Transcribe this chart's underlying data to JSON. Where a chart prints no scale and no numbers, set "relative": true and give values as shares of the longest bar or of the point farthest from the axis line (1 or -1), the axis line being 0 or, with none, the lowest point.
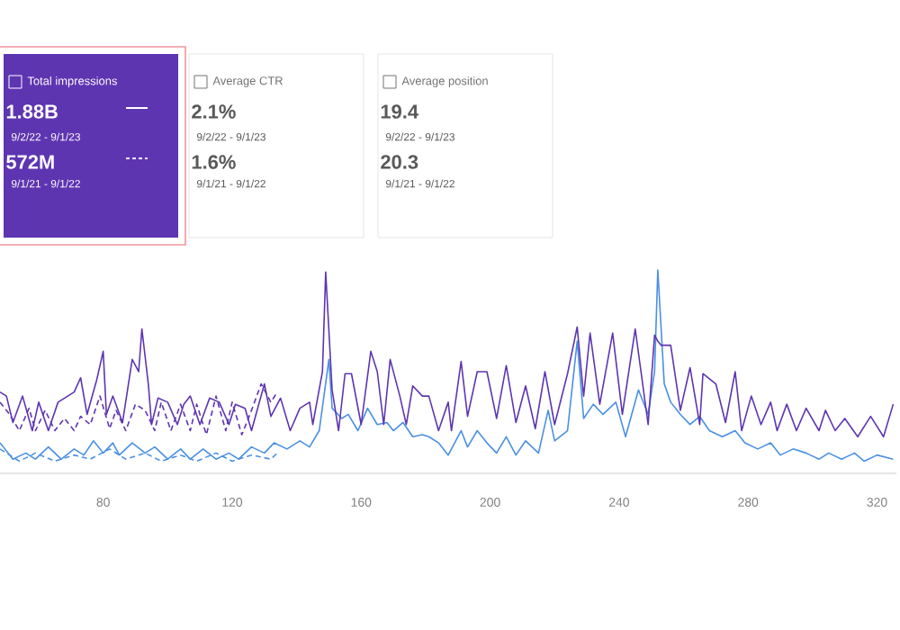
{
  "chart_data": [
    {
      "type": "other",
      "title": "Total impressions",
      "color": "#5e35b1",
      "annotations": [
        "1.88B",
        "9/2/22 - 9/1/23",
        "572M",
        "9/1/21 - 9/1/22"
      ]
    },
    {
      "type": "other",
      "title": "Average CTR",
      "annotations": [
        "2.1%",
        "9/2/22 - 9/1/23",
        "1.6%",
        "9/1/21 - 9/1/22"
      ]
    },
    {
      "type": "other",
      "title": "Average position",
      "annotations": [
        "19.4",
        "9/2/22 - 9/1/23",
        "20.3",
        "9/1/21 - 9/1/22"
      ]
    },
    {
      "type": "line",
      "relative": true,
      "xlim": [
        48,
        326
      ],
      "xticks": [
        80,
        120,
        160,
        200,
        240,
        280,
        320
      ],
      "series": [
        {
          "color": "#5e35b1",
          "line_style": "dashed",
          "x": [
            48,
            51,
            54,
            57,
            59,
            62,
            65,
            68,
            71,
            73,
            76,
            79,
            82,
            84,
            87,
            90,
            93,
            96,
            98,
            101,
            104,
            107,
            109,
            112,
            115,
            118,
            120,
            123,
            126,
            129,
            132,
            134
          ],
          "values": [
            0.35,
            0.29,
            0.21,
            0.32,
            0.21,
            0.31,
            0.21,
            0.27,
            0.21,
            0.28,
            0.24,
            0.38,
            0.22,
            0.31,
            0.21,
            0.34,
            0.31,
            0.21,
            0.35,
            0.21,
            0.34,
            0.21,
            0.34,
            0.19,
            0.38,
            0.21,
            0.35,
            0.19,
            0.31,
            0.44,
            0.35,
            0.4
          ]
        },
        {
          "color": "#4a90e2",
          "line_style": "dashed",
          "x": [
            48,
            54,
            59,
            65,
            71,
            76,
            82,
            87,
            93,
            98,
            104,
            109,
            115,
            120,
            126,
            132,
            134
          ],
          "values": [
            0.12,
            0.06,
            0.1,
            0.06,
            0.09,
            0.07,
            0.12,
            0.07,
            0.1,
            0.06,
            0.09,
            0.06,
            0.1,
            0.06,
            0.09,
            0.07,
            0.1
          ]
        },
        {
          "color": "#4a90e2",
          "line_style": "solid",
          "x": [
            48,
            52,
            56,
            59,
            63,
            67,
            71,
            74,
            77,
            80,
            83,
            85,
            89,
            93,
            96,
            100,
            104,
            107,
            111,
            115,
            119,
            122,
            126,
            130,
            133,
            137,
            141,
            144,
            147,
            150,
            151,
            154,
            156,
            159,
            162,
            165,
            168,
            170,
            173,
            176,
            179,
            181,
            184,
            187,
            191,
            193,
            196,
            199,
            202,
            205,
            208,
            211,
            215,
            218,
            220,
            224,
            227,
            229,
            232,
            235,
            239,
            242,
            246,
            249,
            251,
            252,
            254,
            256,
            259,
            262,
            265,
            268,
            272,
            276,
            279,
            283,
            287,
            290,
            294,
            298,
            302,
            305,
            309,
            313,
            316,
            320,
            325
          ],
          "values": [
            0.15,
            0.07,
            0.1,
            0.07,
            0.13,
            0.07,
            0.12,
            0.09,
            0.16,
            0.1,
            0.15,
            0.09,
            0.15,
            0.1,
            0.13,
            0.07,
            0.12,
            0.07,
            0.12,
            0.07,
            0.1,
            0.07,
            0.13,
            0.1,
            0.15,
            0.12,
            0.16,
            0.13,
            0.21,
            0.56,
            0.32,
            0.27,
            0.29,
            0.21,
            0.32,
            0.24,
            0.25,
            0.21,
            0.25,
            0.18,
            0.19,
            0.18,
            0.15,
            0.09,
            0.21,
            0.13,
            0.21,
            0.15,
            0.1,
            0.18,
            0.09,
            0.16,
            0.1,
            0.31,
            0.16,
            0.21,
            0.65,
            0.27,
            0.34,
            0.29,
            0.35,
            0.18,
            0.41,
            0.29,
            0.5,
            1.0,
            0.44,
            0.35,
            0.29,
            0.24,
            0.28,
            0.21,
            0.18,
            0.21,
            0.15,
            0.12,
            0.15,
            0.09,
            0.12,
            0.1,
            0.07,
            0.1,
            0.07,
            0.1,
            0.06,
            0.09,
            0.07
          ]
        },
        {
          "color": "#5e35b1",
          "line_style": "solid",
          "x": [
            48,
            50,
            52,
            55,
            58,
            60,
            63,
            66,
            69,
            71,
            73,
            75,
            78,
            80,
            81,
            83,
            86,
            89,
            91,
            92,
            94,
            95,
            97,
            100,
            103,
            105,
            107,
            110,
            113,
            116,
            119,
            121,
            124,
            126,
            130,
            132,
            135,
            138,
            141,
            144,
            145,
            148,
            149,
            151,
            153,
            155,
            157,
            160,
            163,
            165,
            167,
            169,
            172,
            174,
            176,
            179,
            181,
            184,
            187,
            188,
            191,
            193,
            196,
            199,
            202,
            205,
            208,
            211,
            214,
            217,
            220,
            224,
            227,
            229,
            231,
            234,
            238,
            241,
            245,
            249,
            251,
            252,
            253,
            256,
            259,
            262,
            265,
            266,
            270,
            273,
            276,
            278,
            281,
            284,
            287,
            289,
            292,
            295,
            298,
            302,
            304,
            307,
            310,
            314,
            318,
            322,
            325
          ],
          "values": [
            0.4,
            0.38,
            0.25,
            0.38,
            0.21,
            0.35,
            0.21,
            0.35,
            0.38,
            0.4,
            0.47,
            0.29,
            0.46,
            0.6,
            0.29,
            0.38,
            0.25,
            0.56,
            0.5,
            0.71,
            0.44,
            0.24,
            0.37,
            0.35,
            0.24,
            0.34,
            0.38,
            0.24,
            0.37,
            0.35,
            0.24,
            0.34,
            0.32,
            0.21,
            0.44,
            0.28,
            0.37,
            0.21,
            0.32,
            0.35,
            0.24,
            0.5,
            0.99,
            0.41,
            0.21,
            0.49,
            0.49,
            0.24,
            0.6,
            0.5,
            0.24,
            0.56,
            0.38,
            0.24,
            0.43,
            0.38,
            0.38,
            0.21,
            0.35,
            0.21,
            0.55,
            0.28,
            0.5,
            0.5,
            0.27,
            0.53,
            0.25,
            0.43,
            0.22,
            0.5,
            0.24,
            0.49,
            0.72,
            0.38,
            0.69,
            0.34,
            0.69,
            0.29,
            0.71,
            0.24,
            0.68,
            0.65,
            0.63,
            0.63,
            0.31,
            0.52,
            0.24,
            0.49,
            0.44,
            0.25,
            0.5,
            0.21,
            0.38,
            0.24,
            0.35,
            0.21,
            0.34,
            0.21,
            0.32,
            0.21,
            0.31,
            0.21,
            0.27,
            0.18,
            0.28,
            0.18,
            0.34
          ]
        }
      ]
    }
  ]
}
